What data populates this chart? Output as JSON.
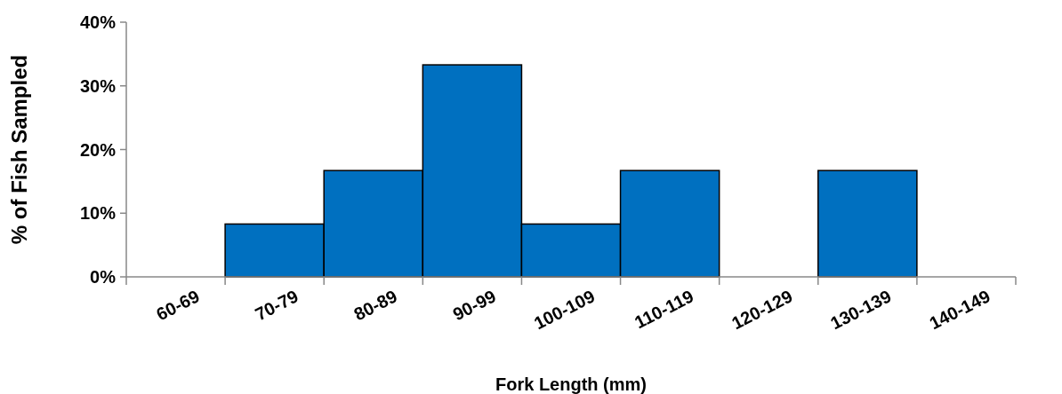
{
  "chart_data": {
    "type": "bar",
    "xlabel": "Fork Length (mm)",
    "ylabel": "% of Fish Sampled",
    "categories": [
      "60-69",
      "70-79",
      "80-89",
      "90-99",
      "100-109",
      "110-119",
      "120-129",
      "130-139",
      "140-149"
    ],
    "values": [
      0,
      8.3,
      16.7,
      33.3,
      8.3,
      16.7,
      0,
      16.7,
      0
    ],
    "color": "#0070c0",
    "ylim": [
      0,
      40
    ],
    "yticks": [
      {
        "value": 0,
        "label": "0%"
      },
      {
        "value": 10,
        "label": "10%"
      },
      {
        "value": 20,
        "label": "20%"
      },
      {
        "value": 30,
        "label": "30%"
      },
      {
        "value": 40,
        "label": "40%"
      }
    ],
    "grid": false
  }
}
